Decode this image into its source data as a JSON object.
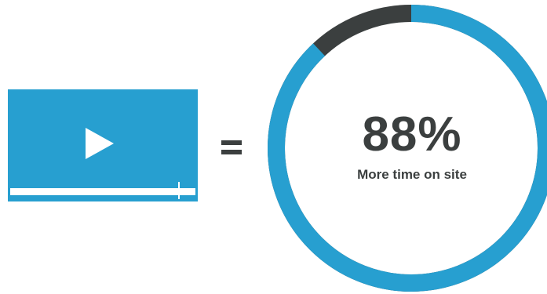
{
  "stat": {
    "value": "88%",
    "label": "More time on site"
  },
  "ring": {
    "percent": 88,
    "fill_color": "#279fd0",
    "rest_color": "#3b3f3f"
  },
  "video": {
    "color": "#279fd0",
    "progress_fraction": 0.91
  },
  "icons": {
    "play": "play-icon",
    "equals": "equals-icon"
  }
}
